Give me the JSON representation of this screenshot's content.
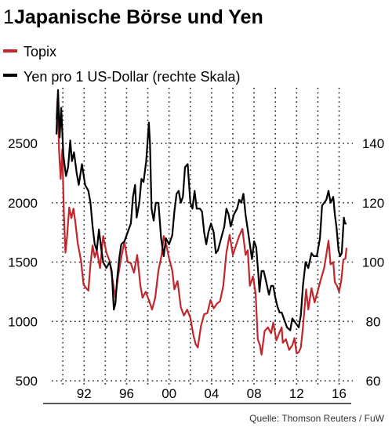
{
  "chart_data": {
    "type": "line",
    "title_number": "1",
    "title": "Japanische Börse und Yen",
    "source": "Quelle: Thomson Reuters / FuW",
    "legend": [
      {
        "name": "Topix",
        "color": "#c0272d"
      },
      {
        "name": "Yen pro 1 US-Dollar (rechte Skala)",
        "color": "#000000"
      }
    ],
    "x_ticks": [
      "92",
      "96",
      "00",
      "04",
      "08",
      "12",
      "16"
    ],
    "y_left_ticks": [
      "2500",
      "2000",
      "1500",
      "1000",
      "500"
    ],
    "y_right_ticks": [
      "140",
      "120",
      "100",
      "80",
      "60"
    ],
    "y_left_range": [
      500,
      2500
    ],
    "y_right_range": [
      60,
      140
    ],
    "grid": "dotted",
    "x_range": [
      1989.9,
      2017.2
    ],
    "series": [
      {
        "name": "Topix",
        "axis": "left",
        "color": "#c0272d",
        "points": [
          [
            1989.9,
            2700
          ],
          [
            1990.0,
            2880
          ],
          [
            1990.15,
            2430
          ],
          [
            1990.3,
            2200
          ],
          [
            1990.45,
            2450
          ],
          [
            1990.6,
            1900
          ],
          [
            1990.75,
            1580
          ],
          [
            1990.9,
            1720
          ],
          [
            1991.1,
            1960
          ],
          [
            1991.3,
            1870
          ],
          [
            1991.5,
            1950
          ],
          [
            1991.7,
            1820
          ],
          [
            1991.9,
            1660
          ],
          [
            1992.2,
            1520
          ],
          [
            1992.45,
            1310
          ],
          [
            1992.7,
            1280
          ],
          [
            1992.9,
            1260
          ],
          [
            1993.1,
            1480
          ],
          [
            1993.3,
            1640
          ],
          [
            1993.5,
            1540
          ],
          [
            1993.7,
            1600
          ],
          [
            1994.0,
            1450
          ],
          [
            1994.3,
            1720
          ],
          [
            1994.6,
            1580
          ],
          [
            1994.9,
            1510
          ],
          [
            1995.2,
            1340
          ],
          [
            1995.45,
            1200
          ],
          [
            1995.7,
            1380
          ],
          [
            1996.0,
            1540
          ],
          [
            1996.3,
            1670
          ],
          [
            1996.6,
            1500
          ],
          [
            1996.9,
            1490
          ],
          [
            1997.2,
            1410
          ],
          [
            1997.5,
            1560
          ],
          [
            1997.8,
            1300
          ],
          [
            1998.0,
            1200
          ],
          [
            1998.3,
            1250
          ],
          [
            1998.6,
            1180
          ],
          [
            1998.9,
            1100
          ],
          [
            1999.2,
            1200
          ],
          [
            1999.5,
            1430
          ],
          [
            1999.8,
            1560
          ],
          [
            2000.0,
            1720
          ],
          [
            2000.2,
            1660
          ],
          [
            2000.5,
            1530
          ],
          [
            2000.8,
            1430
          ],
          [
            2001.0,
            1270
          ],
          [
            2001.3,
            1340
          ],
          [
            2001.6,
            1120
          ],
          [
            2001.9,
            1050
          ],
          [
            2002.2,
            1100
          ],
          [
            2002.5,
            1030
          ],
          [
            2002.8,
            880
          ],
          [
            2003.0,
            810
          ],
          [
            2003.2,
            780
          ],
          [
            2003.5,
            960
          ],
          [
            2003.8,
            1060
          ],
          [
            2004.1,
            1070
          ],
          [
            2004.4,
            1180
          ],
          [
            2004.7,
            1110
          ],
          [
            2005.0,
            1150
          ],
          [
            2005.3,
            1170
          ],
          [
            2005.6,
            1300
          ],
          [
            2005.9,
            1580
          ],
          [
            2006.2,
            1730
          ],
          [
            2006.5,
            1560
          ],
          [
            2006.8,
            1640
          ],
          [
            2007.1,
            1720
          ],
          [
            2007.4,
            1780
          ],
          [
            2007.7,
            1560
          ],
          [
            2007.9,
            1600
          ],
          [
            2008.1,
            1300
          ],
          [
            2008.4,
            1380
          ],
          [
            2008.65,
            1230
          ],
          [
            2008.85,
            850
          ],
          [
            2009.05,
            800
          ],
          [
            2009.2,
            720
          ],
          [
            2009.5,
            920
          ],
          [
            2009.8,
            950
          ],
          [
            2010.1,
            900
          ],
          [
            2010.3,
            990
          ],
          [
            2010.6,
            840
          ],
          [
            2010.9,
            910
          ],
          [
            2011.1,
            950
          ],
          [
            2011.2,
            820
          ],
          [
            2011.5,
            850
          ],
          [
            2011.8,
            760
          ],
          [
            2012.1,
            800
          ],
          [
            2012.3,
            860
          ],
          [
            2012.5,
            730
          ],
          [
            2012.7,
            740
          ],
          [
            2012.9,
            780
          ],
          [
            2013.1,
            950
          ],
          [
            2013.4,
            1270
          ],
          [
            2013.6,
            1100
          ],
          [
            2013.9,
            1280
          ],
          [
            2014.2,
            1160
          ],
          [
            2014.5,
            1260
          ],
          [
            2014.8,
            1360
          ],
          [
            2015.1,
            1450
          ],
          [
            2015.4,
            1620
          ],
          [
            2015.5,
            1680
          ],
          [
            2015.7,
            1480
          ],
          [
            2015.95,
            1500
          ],
          [
            2016.1,
            1330
          ],
          [
            2016.3,
            1300
          ],
          [
            2016.5,
            1250
          ],
          [
            2016.7,
            1340
          ],
          [
            2016.9,
            1520
          ],
          [
            2017.1,
            1530
          ],
          [
            2017.2,
            1620
          ]
        ]
      },
      {
        "name": "Yen pro 1 US-Dollar (rechte Skala)",
        "axis": "right",
        "color": "#000000",
        "points": [
          [
            1989.9,
            143
          ],
          [
            1990.05,
            158
          ],
          [
            1990.2,
            142
          ],
          [
            1990.35,
            152
          ],
          [
            1990.55,
            136
          ],
          [
            1990.8,
            129
          ],
          [
            1991.0,
            132
          ],
          [
            1991.2,
            141
          ],
          [
            1991.35,
            134
          ],
          [
            1991.55,
            137
          ],
          [
            1991.8,
            130
          ],
          [
            1992.0,
            126
          ],
          [
            1992.3,
            133
          ],
          [
            1992.6,
            126
          ],
          [
            1992.9,
            124
          ],
          [
            1993.1,
            120
          ],
          [
            1993.3,
            112
          ],
          [
            1993.5,
            106
          ],
          [
            1993.7,
            104
          ],
          [
            1993.9,
            111
          ],
          [
            1994.1,
            105
          ],
          [
            1994.3,
            100
          ],
          [
            1994.6,
            98
          ],
          [
            1994.9,
            100
          ],
          [
            1995.1,
            97
          ],
          [
            1995.3,
            84
          ],
          [
            1995.45,
            86
          ],
          [
            1995.6,
            94
          ],
          [
            1995.8,
            101
          ],
          [
            1996.0,
            106
          ],
          [
            1996.3,
            107
          ],
          [
            1996.6,
            110
          ],
          [
            1996.9,
            113
          ],
          [
            1997.1,
            122
          ],
          [
            1997.3,
            126
          ],
          [
            1997.45,
            115
          ],
          [
            1997.7,
            120
          ],
          [
            1997.9,
            128
          ],
          [
            1998.1,
            127
          ],
          [
            1998.35,
            134
          ],
          [
            1998.6,
            147
          ],
          [
            1998.7,
            140
          ],
          [
            1998.85,
            118
          ],
          [
            1999.05,
            114
          ],
          [
            1999.25,
            120
          ],
          [
            1999.5,
            120
          ],
          [
            1999.75,
            108
          ],
          [
            2000.0,
            102
          ],
          [
            2000.2,
            108
          ],
          [
            2000.5,
            106
          ],
          [
            2000.8,
            109
          ],
          [
            2001.0,
            117
          ],
          [
            2001.2,
            123
          ],
          [
            2001.4,
            124
          ],
          [
            2001.6,
            120
          ],
          [
            2001.8,
            122
          ],
          [
            2002.0,
            132
          ],
          [
            2002.25,
            133
          ],
          [
            2002.5,
            120
          ],
          [
            2002.7,
            118
          ],
          [
            2002.9,
            124
          ],
          [
            2003.1,
            118
          ],
          [
            2003.4,
            118
          ],
          [
            2003.6,
            117
          ],
          [
            2003.8,
            110
          ],
          [
            2004.0,
            106
          ],
          [
            2004.2,
            110
          ],
          [
            2004.45,
            113
          ],
          [
            2004.7,
            110
          ],
          [
            2004.9,
            103
          ],
          [
            2005.1,
            104
          ],
          [
            2005.4,
            108
          ],
          [
            2005.7,
            112
          ],
          [
            2005.9,
            118
          ],
          [
            2006.1,
            116
          ],
          [
            2006.3,
            112
          ],
          [
            2006.6,
            116
          ],
          [
            2006.9,
            118
          ],
          [
            2007.1,
            121
          ],
          [
            2007.3,
            120
          ],
          [
            2007.5,
            123
          ],
          [
            2007.7,
            116
          ],
          [
            2007.9,
            111
          ],
          [
            2008.1,
            106
          ],
          [
            2008.3,
            101
          ],
          [
            2008.5,
            107
          ],
          [
            2008.7,
            105
          ],
          [
            2008.9,
            96
          ],
          [
            2009.0,
            90
          ],
          [
            2009.2,
            97
          ],
          [
            2009.4,
            97
          ],
          [
            2009.6,
            94
          ],
          [
            2009.9,
            89
          ],
          [
            2010.1,
            92
          ],
          [
            2010.3,
            92
          ],
          [
            2010.5,
            88
          ],
          [
            2010.7,
            85
          ],
          [
            2010.9,
            83
          ],
          [
            2011.1,
            83
          ],
          [
            2011.3,
            81
          ],
          [
            2011.6,
            78
          ],
          [
            2011.9,
            77
          ],
          [
            2012.1,
            81
          ],
          [
            2012.3,
            80
          ],
          [
            2012.5,
            79
          ],
          [
            2012.7,
            78
          ],
          [
            2012.9,
            82
          ],
          [
            2013.1,
            92
          ],
          [
            2013.35,
            100
          ],
          [
            2013.6,
            98
          ],
          [
            2013.9,
            103
          ],
          [
            2014.1,
            102
          ],
          [
            2014.4,
            102
          ],
          [
            2014.7,
            108
          ],
          [
            2014.9,
            119
          ],
          [
            2015.1,
            120
          ],
          [
            2015.3,
            121
          ],
          [
            2015.5,
            124
          ],
          [
            2015.7,
            120
          ],
          [
            2015.95,
            122
          ],
          [
            2016.1,
            116
          ],
          [
            2016.25,
            112
          ],
          [
            2016.45,
            104
          ],
          [
            2016.6,
            102
          ],
          [
            2016.75,
            103
          ],
          [
            2016.95,
            115
          ],
          [
            2017.05,
            113
          ],
          [
            2017.2,
            113
          ]
        ]
      }
    ]
  }
}
